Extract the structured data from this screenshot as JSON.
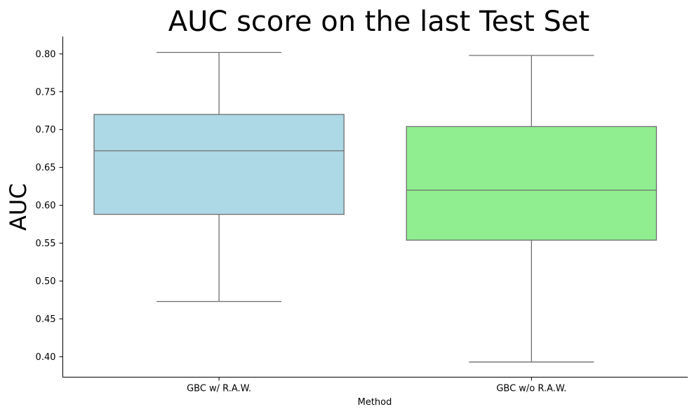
{
  "chart_data": {
    "type": "box",
    "title": "AUC score on the last Test Set",
    "xlabel": "Method",
    "ylabel": "AUC",
    "ylim": [
      0.373,
      0.823
    ],
    "yticks": [
      "0.40",
      "0.45",
      "0.50",
      "0.55",
      "0.60",
      "0.65",
      "0.70",
      "0.75",
      "0.80"
    ],
    "grid": false,
    "categories": [
      "GBC w/ R.A.W.",
      "GBC w/o R.A.W."
    ],
    "boxes": [
      {
        "category": "GBC w/ R.A.W.",
        "whisker_low": 0.473,
        "q1": 0.588,
        "median": 0.672,
        "q3": 0.72,
        "whisker_high": 0.802,
        "color": "#add8e6"
      },
      {
        "category": "GBC w/o R.A.W.",
        "whisker_low": 0.393,
        "q1": 0.554,
        "median": 0.62,
        "q3": 0.704,
        "whisker_high": 0.798,
        "color": "#90ee90"
      }
    ],
    "line_color": "#6e6e6e"
  }
}
